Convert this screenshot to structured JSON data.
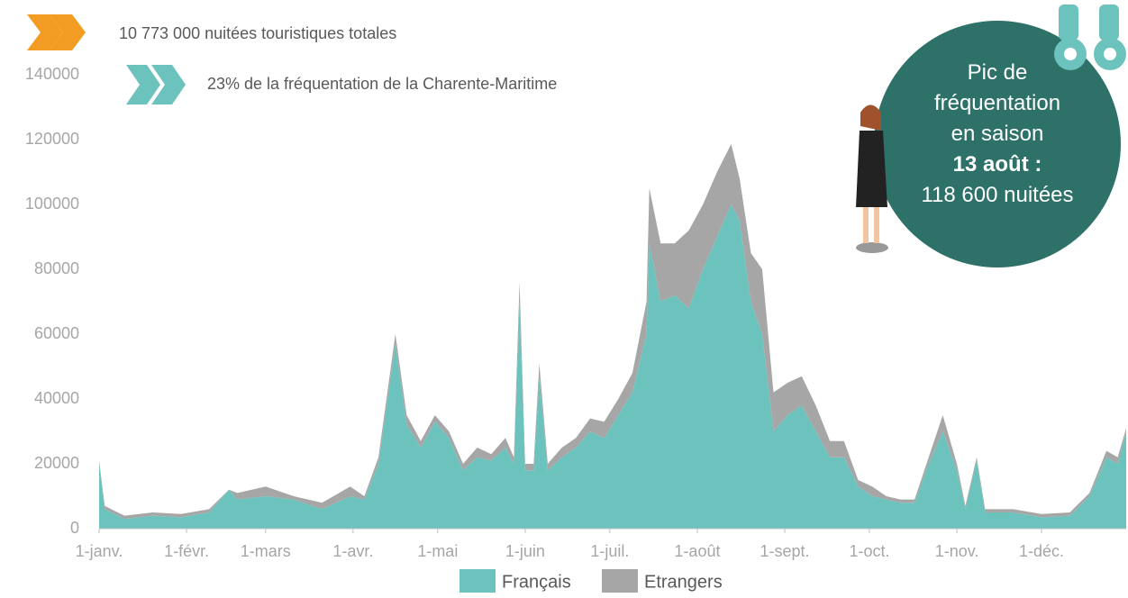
{
  "chart_data": {
    "type": "stacked-area",
    "annotations": [
      "10 773 000 nuitées touristiques totales",
      "23% de la fréquentation de la Charente-Maritime"
    ],
    "callout": {
      "lines": [
        "Pic de",
        "fréquentation",
        "en saison"
      ],
      "bold": "13 août :",
      "value": "118 600 nuitées"
    },
    "x": [
      1,
      3,
      10,
      20,
      30,
      40,
      47,
      50,
      60,
      70,
      80,
      90,
      95,
      100,
      106,
      110,
      115,
      120,
      125,
      130,
      135,
      140,
      145,
      148,
      150,
      152,
      155,
      157,
      160,
      165,
      170,
      175,
      180,
      185,
      190,
      195,
      196,
      200,
      205,
      210,
      215,
      220,
      225,
      228,
      232,
      236,
      240,
      245,
      250,
      255,
      260,
      265,
      270,
      275,
      280,
      285,
      290,
      295,
      300,
      305,
      308,
      312,
      315,
      325,
      335,
      345,
      352,
      358,
      362,
      365
    ],
    "series": [
      {
        "name": "Français",
        "color": "#6cc3bd",
        "values": [
          20000,
          6000,
          3000,
          4000,
          3500,
          5000,
          12000,
          9000,
          10000,
          9000,
          6000,
          10000,
          9000,
          20000,
          57000,
          32000,
          25000,
          33000,
          28000,
          18000,
          22000,
          21000,
          25000,
          20000,
          70000,
          18000,
          18000,
          47000,
          18000,
          22000,
          25000,
          30000,
          28000,
          35000,
          42000,
          60000,
          88000,
          70000,
          72000,
          68000,
          80000,
          90000,
          100000,
          95000,
          70000,
          60000,
          30000,
          35000,
          38000,
          30000,
          22000,
          22000,
          13000,
          10000,
          9000,
          8000,
          8000,
          20000,
          30000,
          18000,
          6000,
          21000,
          5000,
          5000,
          3500,
          4000,
          10000,
          22000,
          20000,
          30000
        ]
      },
      {
        "name": "Etrangers",
        "color": "#a6a6a6",
        "values": [
          1000,
          1000,
          1000,
          1000,
          1000,
          1000,
          0,
          2000,
          3000,
          1000,
          2000,
          3000,
          1000,
          2000,
          3000,
          3000,
          2000,
          2000,
          2000,
          2000,
          3000,
          2000,
          3000,
          2000,
          6000,
          2000,
          2000,
          4000,
          2000,
          3000,
          3000,
          4000,
          5000,
          5000,
          6000,
          10000,
          17000,
          18000,
          16000,
          24000,
          20000,
          20000,
          18600,
          13000,
          15000,
          20000,
          12000,
          10000,
          9000,
          8000,
          5000,
          5000,
          2000,
          3000,
          1000,
          1000,
          1000,
          2000,
          5000,
          2000,
          1000,
          1000,
          1000,
          1000,
          1000,
          1000,
          1000,
          2000,
          2000,
          1000
        ]
      }
    ],
    "xlim": [
      1,
      365
    ],
    "xticks": [
      {
        "value": 1,
        "label": "1-janv."
      },
      {
        "value": 32,
        "label": "1-févr."
      },
      {
        "value": 60,
        "label": "1-mars"
      },
      {
        "value": 91,
        "label": "1-avr."
      },
      {
        "value": 121,
        "label": "1-mai"
      },
      {
        "value": 152,
        "label": "1-juin"
      },
      {
        "value": 182,
        "label": "1-juil."
      },
      {
        "value": 213,
        "label": "1-août"
      },
      {
        "value": 244,
        "label": "1-sept."
      },
      {
        "value": 274,
        "label": "1-oct."
      },
      {
        "value": 305,
        "label": "1-nov."
      },
      {
        "value": 335,
        "label": "1-déc."
      }
    ],
    "ylim": [
      0,
      140000
    ],
    "yticks": [
      0,
      20000,
      40000,
      60000,
      80000,
      100000,
      120000,
      140000
    ]
  }
}
